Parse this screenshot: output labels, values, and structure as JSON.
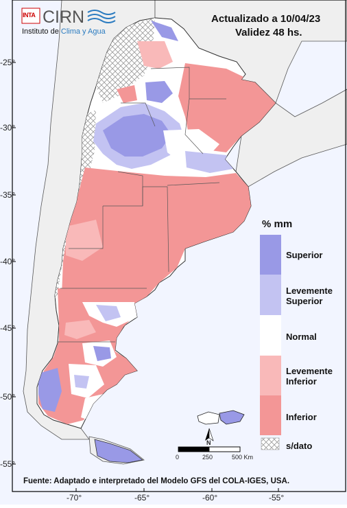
{
  "header": {
    "updated_label": "Actualizado a 10/04/23",
    "validity_label": "Validez 48 hs."
  },
  "logo": {
    "inta_text": "INTA",
    "cirn_text": "CIRN",
    "institute_prefix": "Instituto de ",
    "institute_highlight": "Clima y Agua"
  },
  "legend": {
    "title": "% mm",
    "items": [
      {
        "label": "Superior",
        "color": "#9999e6"
      },
      {
        "label": "Levemente Superior",
        "color": "#c3c3f2"
      },
      {
        "label": "Normal",
        "color": "#ffffff"
      },
      {
        "label": "Levemente Inferior",
        "color": "#f9b9b9"
      },
      {
        "label": "Inferior",
        "color": "#f39696"
      },
      {
        "label": "s/dato",
        "color": "hatched"
      }
    ]
  },
  "scale_bar": {
    "labels": [
      "0",
      "250",
      "500 Km"
    ],
    "north_label": "N"
  },
  "axes": {
    "lat_ticks": [
      "-25°",
      "-30°",
      "-35°",
      "-40°",
      "-45°",
      "-50°",
      "-55°"
    ],
    "lon_ticks": [
      "-70°",
      "-65°",
      "-60°",
      "-55°"
    ]
  },
  "source": "Fuente: Adaptado e interpretado del Modelo GFS del COLA-IGES, USA.",
  "colors": {
    "ocean": "#f2f5ff",
    "neighbor_land": "#efefef",
    "superior": "#9999e6",
    "lev_superior": "#c3c3f2",
    "normal": "#ffffff",
    "lev_inferior": "#f9b9b9",
    "inferior": "#f39696"
  }
}
